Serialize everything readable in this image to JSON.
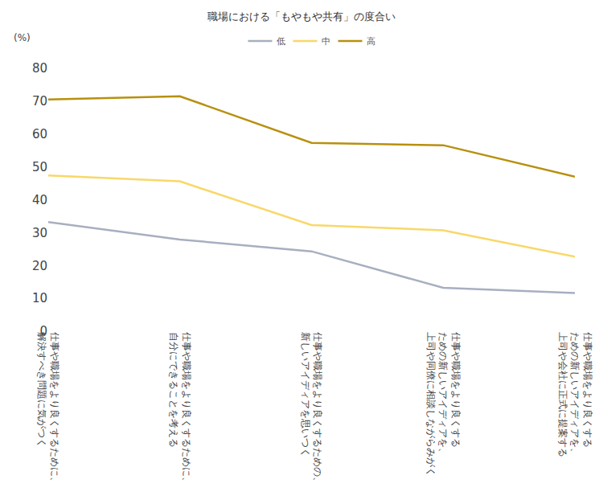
{
  "chart_data": {
    "type": "line",
    "title": "職場における「もやもや共有」の度合い",
    "y_label": "(%)",
    "categories": [
      "仕事や職場をより良くするために、\n解決すべき問題に気がつく",
      "仕事や職場をより良くするために、\n自分にできることを考える",
      "仕事や職場をより良くするための、\n新しいアイディアを思いつく",
      "仕事や職場をより良くする\nための新しいアイディアを、\n上司や同僚に相談しながらみがく",
      "仕事や職場をより良くする\nための新しいアイディアを、\n上司や会社に正式に提案する"
    ],
    "series": [
      {
        "name": "低",
        "color": "#a7afc0",
        "values": [
          33.2,
          27.9,
          24.3,
          13.2,
          11.6
        ]
      },
      {
        "name": "中",
        "color": "#f8d86a",
        "values": [
          47.4,
          45.6,
          32.3,
          30.7,
          22.7
        ]
      },
      {
        "name": "高",
        "color": "#b8900f",
        "values": [
          70.5,
          71.5,
          57.3,
          56.6,
          47.0
        ]
      }
    ],
    "ylim": [
      0,
      80
    ],
    "yticks": [
      0,
      10,
      20,
      30,
      40,
      50,
      60,
      70,
      80
    ],
    "grid": false,
    "legend": "top"
  }
}
